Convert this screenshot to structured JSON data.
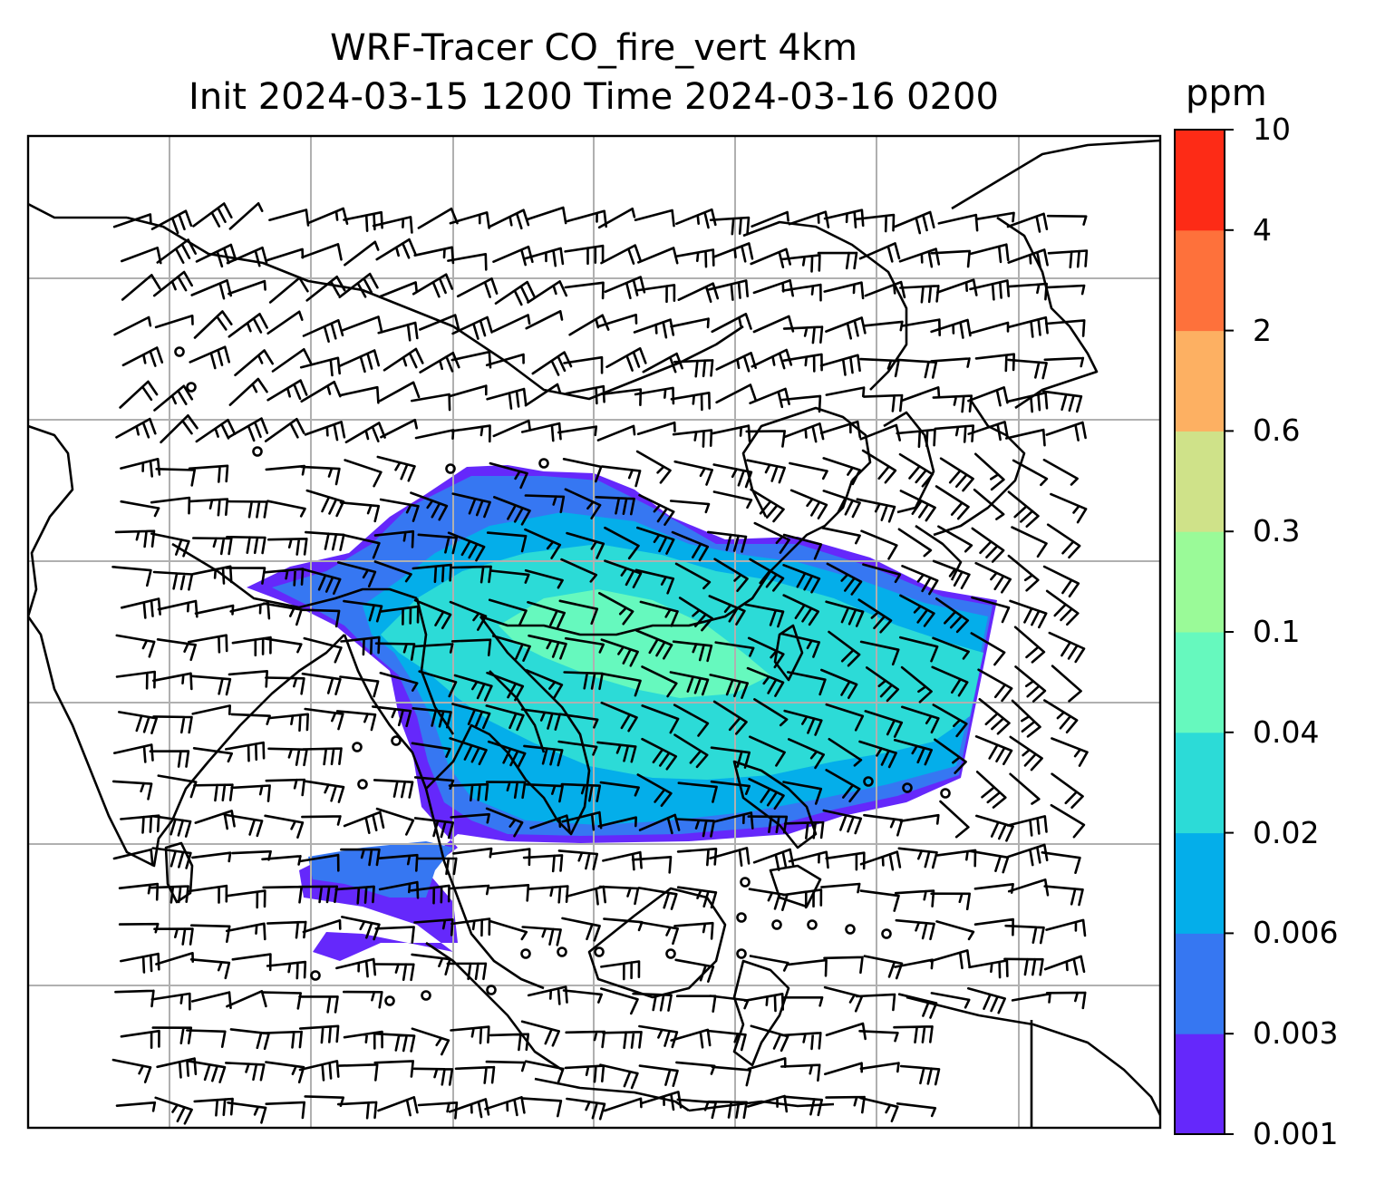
{
  "title": {
    "line1": "WRF-Tracer CO_fire_vert 4km",
    "line2": "Init 2024-03-15 1200 Time 2024-03-16 0200"
  },
  "colorbar": {
    "unit": "ppm",
    "levels": [
      "0.001",
      "0.003",
      "0.006",
      "0.02",
      "0.04",
      "0.1",
      "0.3",
      "0.6",
      "2",
      "4",
      "10"
    ],
    "colors": [
      "#6528fb",
      "#3677f2",
      "#04aeea",
      "#2cdbd7",
      "#66f9be",
      "#9afa98",
      "#cfe289",
      "#fdb062",
      "#fe713b",
      "#fd2b16"
    ]
  },
  "map": {
    "colors": {
      "frame": "#000000",
      "grid": "#b0b0b0",
      "coast": "#000000"
    }
  }
}
